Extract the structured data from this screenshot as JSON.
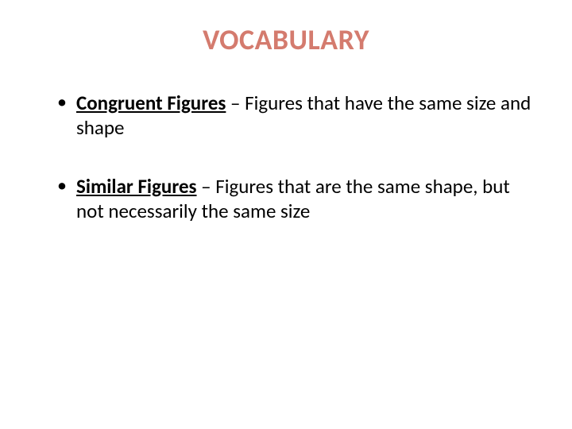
{
  "title": {
    "text": "VOCABULARY",
    "color": "#d47b6e",
    "fontsize": 36,
    "fontweight": 700
  },
  "bullets": [
    {
      "term": "Congruent Figures",
      "definition": " – Figures that have the same size and shape"
    },
    {
      "term": "Similar Figures",
      "definition": " – Figures that are the same shape, but not necessarily the same size"
    }
  ],
  "colors": {
    "background": "#ffffff",
    "text": "#000000",
    "bullet": "#000000"
  },
  "typography": {
    "body_fontsize": 25,
    "body_lineheight": 1.25
  }
}
